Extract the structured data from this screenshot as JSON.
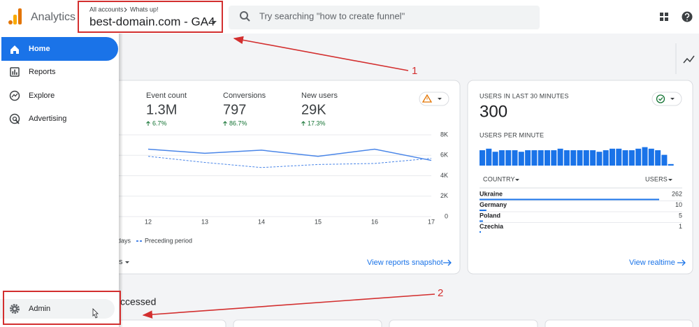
{
  "header": {
    "product": "Analytics",
    "breadcrumb": [
      "All accounts",
      "Whats up!"
    ],
    "property": "best-domain.com - GA4",
    "search_placeholder": "Try searching \"how to create funnel\""
  },
  "nav": {
    "items": [
      "Home",
      "Reports",
      "Explore",
      "Advertising"
    ],
    "admin": "Admin"
  },
  "annotations": [
    "1",
    "2"
  ],
  "overview": {
    "metrics": [
      {
        "label": "Event count",
        "value": "1.3M",
        "change": "6.7%"
      },
      {
        "label": "Conversions",
        "value": "797",
        "change": "86.7%"
      },
      {
        "label": "New users",
        "value": "29K",
        "change": "17.3%"
      }
    ],
    "chart": {
      "type": "line",
      "x": [
        12,
        13,
        14,
        15,
        16,
        17
      ],
      "ylim": [
        0,
        8000
      ],
      "yticks": [
        0,
        {
          "value": 2000,
          "label": "2K"
        },
        {
          "value": 4000,
          "label": "4K"
        },
        {
          "value": 6000,
          "label": "6K"
        },
        {
          "value": 8000,
          "label": "8K"
        }
      ],
      "series": [
        {
          "name": "days",
          "color": "#4a86e8",
          "style": "solid",
          "values": [
            6600,
            6200,
            6500,
            5900,
            6600,
            5500
          ]
        },
        {
          "name": "Preceding period",
          "color": "#4a86e8",
          "style": "dashed",
          "values": [
            5900,
            5300,
            4800,
            5100,
            5200,
            5700
          ]
        }
      ]
    },
    "date_selector_partial": "s",
    "link": "View reports snapshot"
  },
  "realtime": {
    "title": "USERS IN LAST 30 MINUTES",
    "total": 300,
    "per_minute_label": "USERS PER MINUTE",
    "per_minute": [
      10,
      11,
      9,
      10,
      10,
      10,
      9,
      10,
      10,
      10,
      10,
      10,
      11,
      10,
      10,
      10,
      10,
      10,
      9,
      10,
      11,
      11,
      10,
      10,
      11,
      12,
      11,
      10,
      7,
      1
    ],
    "table": {
      "headers": [
        "COUNTRY",
        "USERS"
      ],
      "rows": [
        [
          "Ukraine",
          262
        ],
        [
          "Germany",
          10
        ],
        [
          "Poland",
          5
        ],
        [
          "Czechia",
          1
        ]
      ]
    },
    "link": "View realtime"
  },
  "recent": {
    "title_partial": "ccessed"
  }
}
